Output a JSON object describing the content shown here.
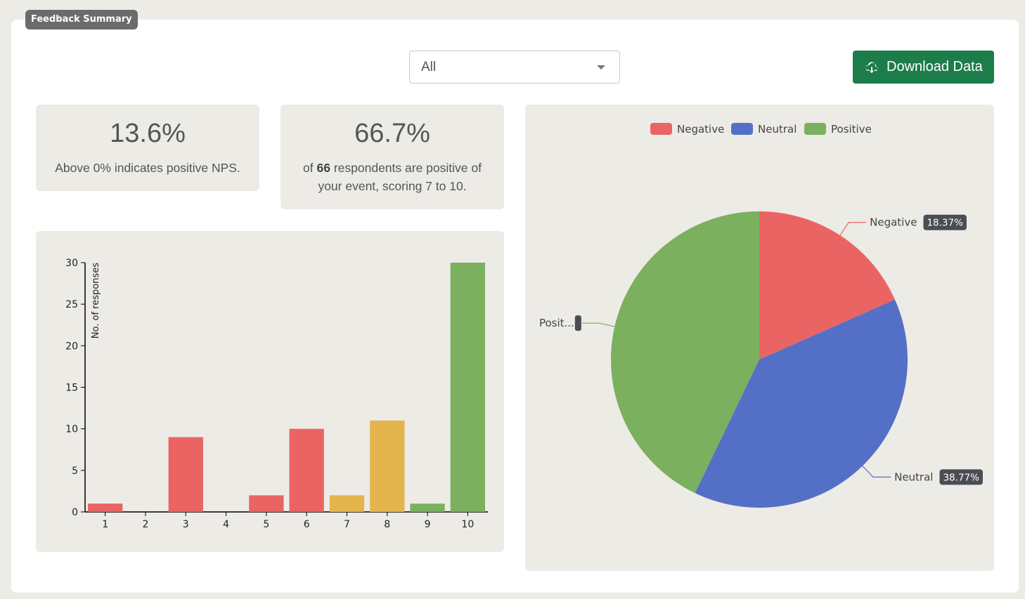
{
  "panel": {
    "tag": "Feedback Summary"
  },
  "filter": {
    "selected": "All",
    "caret_icon": "caret-down-icon"
  },
  "download": {
    "label": "Download Data",
    "icon": "cloud-download-icon",
    "color": "#1c7d4b"
  },
  "stats": [
    {
      "value": "13.6%",
      "text": "Above 0% indicates positive NPS."
    },
    {
      "value": "66.7%",
      "text_pre": "of ",
      "text_bold": "66",
      "text_mid": " respondents are positive of",
      "text_line2": "your event, scoring 7 to 10."
    }
  ],
  "colors": {
    "negative": "#ea6464",
    "neutral": "#5470c6",
    "positive": "#7ab05e",
    "passive": "#e4b54c"
  },
  "chart_data": [
    {
      "type": "bar",
      "ylabel": "No. of responses",
      "xlabel": "",
      "categories": [
        "1",
        "2",
        "3",
        "4",
        "5",
        "6",
        "7",
        "8",
        "9",
        "10"
      ],
      "values": [
        1,
        0,
        9,
        0,
        2,
        10,
        2,
        11,
        1,
        30
      ],
      "bar_colors": [
        "negative",
        "negative",
        "negative",
        "negative",
        "negative",
        "negative",
        "passive",
        "passive",
        "positive",
        "positive"
      ],
      "ylim": [
        0,
        30
      ],
      "yticks": [
        0,
        5,
        10,
        15,
        20,
        25,
        30
      ],
      "grid": false
    },
    {
      "type": "pie",
      "legend": [
        "Negative",
        "Neutral",
        "Positive"
      ],
      "legend_placement": "top-center",
      "slices": [
        {
          "name": "Negative",
          "value": 18.37,
          "label": "Negative",
          "pct": "18.37%",
          "color": "negative"
        },
        {
          "name": "Neutral",
          "value": 38.77,
          "label": "Neutral",
          "pct": "38.77%",
          "color": "neutral"
        },
        {
          "name": "Positive",
          "value": 42.86,
          "label": "Posit...",
          "pct": "",
          "color": "positive"
        }
      ]
    }
  ]
}
